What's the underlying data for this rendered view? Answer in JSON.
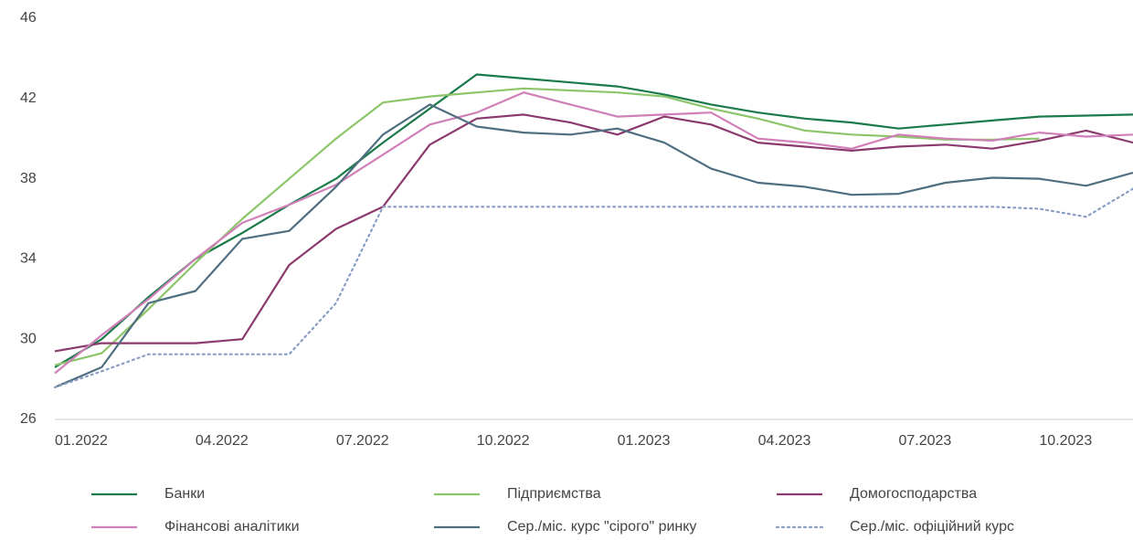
{
  "chart_data": {
    "type": "line",
    "categories": [
      "01.2022",
      null,
      null,
      "04.2022",
      null,
      null,
      "07.2022",
      null,
      null,
      "10.2022",
      null,
      null,
      "01.2023",
      null,
      null,
      "04.2023",
      null,
      null,
      "07.2023",
      null,
      null,
      "10.2023",
      null,
      null
    ],
    "ylim": [
      26,
      46
    ],
    "yticks": [
      26,
      30,
      34,
      38,
      42,
      46
    ],
    "grid": false,
    "series": [
      {
        "name": "Банки",
        "color": "#1a7a4a",
        "style": "solid",
        "values": [
          28.6,
          30.0,
          32.1,
          34.0,
          35.3,
          36.7,
          38.0,
          39.8,
          41.5,
          43.2,
          43.0,
          42.8,
          42.6,
          42.2,
          41.7,
          41.3,
          41.0,
          40.8,
          40.5,
          40.7,
          40.9,
          41.1,
          41.15,
          41.2
        ]
      },
      {
        "name": "Підприємства",
        "color": "#8cc56a",
        "style": "solid",
        "values": [
          28.7,
          29.3,
          31.5,
          33.8,
          36.0,
          38.0,
          40.0,
          41.8,
          42.1,
          42.3,
          42.5,
          42.4,
          42.3,
          42.1,
          41.5,
          41.0,
          40.4,
          40.2,
          40.1,
          39.95,
          39.95,
          40.0,
          null,
          null
        ]
      },
      {
        "name": "Домогосподарства",
        "color": "#8b3a6e",
        "style": "solid",
        "values": [
          29.4,
          29.8,
          29.8,
          29.8,
          30.0,
          33.7,
          35.5,
          36.6,
          39.7,
          41.0,
          41.2,
          40.8,
          40.2,
          41.1,
          40.7,
          39.8,
          39.6,
          39.4,
          39.6,
          39.7,
          39.5,
          39.9,
          40.4,
          39.8
        ]
      },
      {
        "name": "Фінансові аналітики",
        "color": "#d07fb8",
        "style": "solid",
        "values": [
          28.3,
          30.2,
          32.0,
          34.0,
          35.8,
          36.7,
          37.7,
          39.2,
          40.7,
          41.3,
          42.3,
          41.7,
          41.1,
          41.2,
          41.3,
          40.0,
          39.8,
          39.5,
          40.2,
          40.0,
          39.9,
          40.3,
          40.1,
          40.2
        ]
      },
      {
        "name": "Сер./міс. курс \"сірого\" ринку",
        "color": "#4f6f80",
        "style": "solid",
        "values": [
          27.6,
          28.6,
          31.8,
          32.4,
          35.0,
          35.4,
          37.6,
          40.2,
          41.7,
          40.6,
          40.3,
          40.2,
          40.5,
          39.8,
          38.5,
          37.8,
          37.6,
          37.2,
          37.25,
          37.8,
          38.05,
          38.0,
          37.65,
          38.3
        ]
      },
      {
        "name": "Сер./міс. офіційний курс",
        "color": "#8a9ec4",
        "style": "dotted",
        "values": [
          27.6,
          28.4,
          29.25,
          29.25,
          29.25,
          29.25,
          31.8,
          36.6,
          36.6,
          36.6,
          36.6,
          36.6,
          36.6,
          36.6,
          36.6,
          36.6,
          36.6,
          36.6,
          36.6,
          36.6,
          36.6,
          36.5,
          36.1,
          37.5
        ]
      }
    ]
  }
}
